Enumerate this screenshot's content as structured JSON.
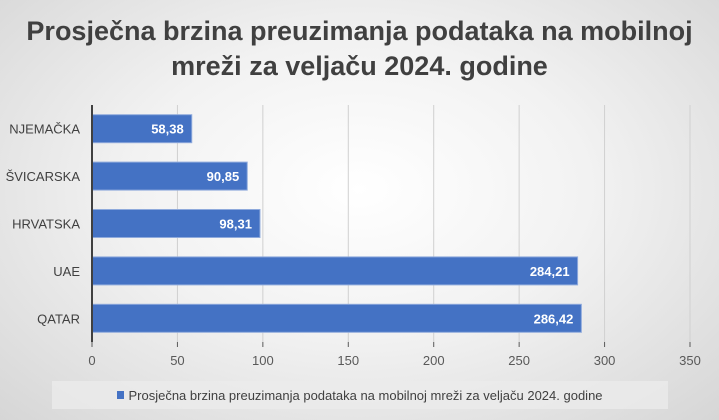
{
  "chart_data": {
    "type": "bar",
    "orientation": "horizontal",
    "title": "Prosječna brzina preuzimanja podataka na mobilnoj mreži za veljaču 2024. godine",
    "categories": [
      "NJEMAČKA",
      "ŠVICARSKA",
      "HRVATSKA",
      "UAE",
      "QATAR"
    ],
    "series": [
      {
        "name": "Prosječna brzina preuzimanja podataka na mobilnoj mreži za veljaču 2024. godine",
        "values": [
          58.38,
          90.85,
          98.31,
          284.21,
          286.42
        ],
        "labels": [
          "58,38",
          "90,85",
          "98,31",
          "284,21",
          "286,42"
        ],
        "color": "#4472c4"
      }
    ],
    "xlim": [
      0,
      350
    ],
    "xticks": [
      "0",
      "50",
      "100",
      "150",
      "200",
      "250",
      "300",
      "350"
    ],
    "grid": true,
    "legend": "bottom"
  }
}
